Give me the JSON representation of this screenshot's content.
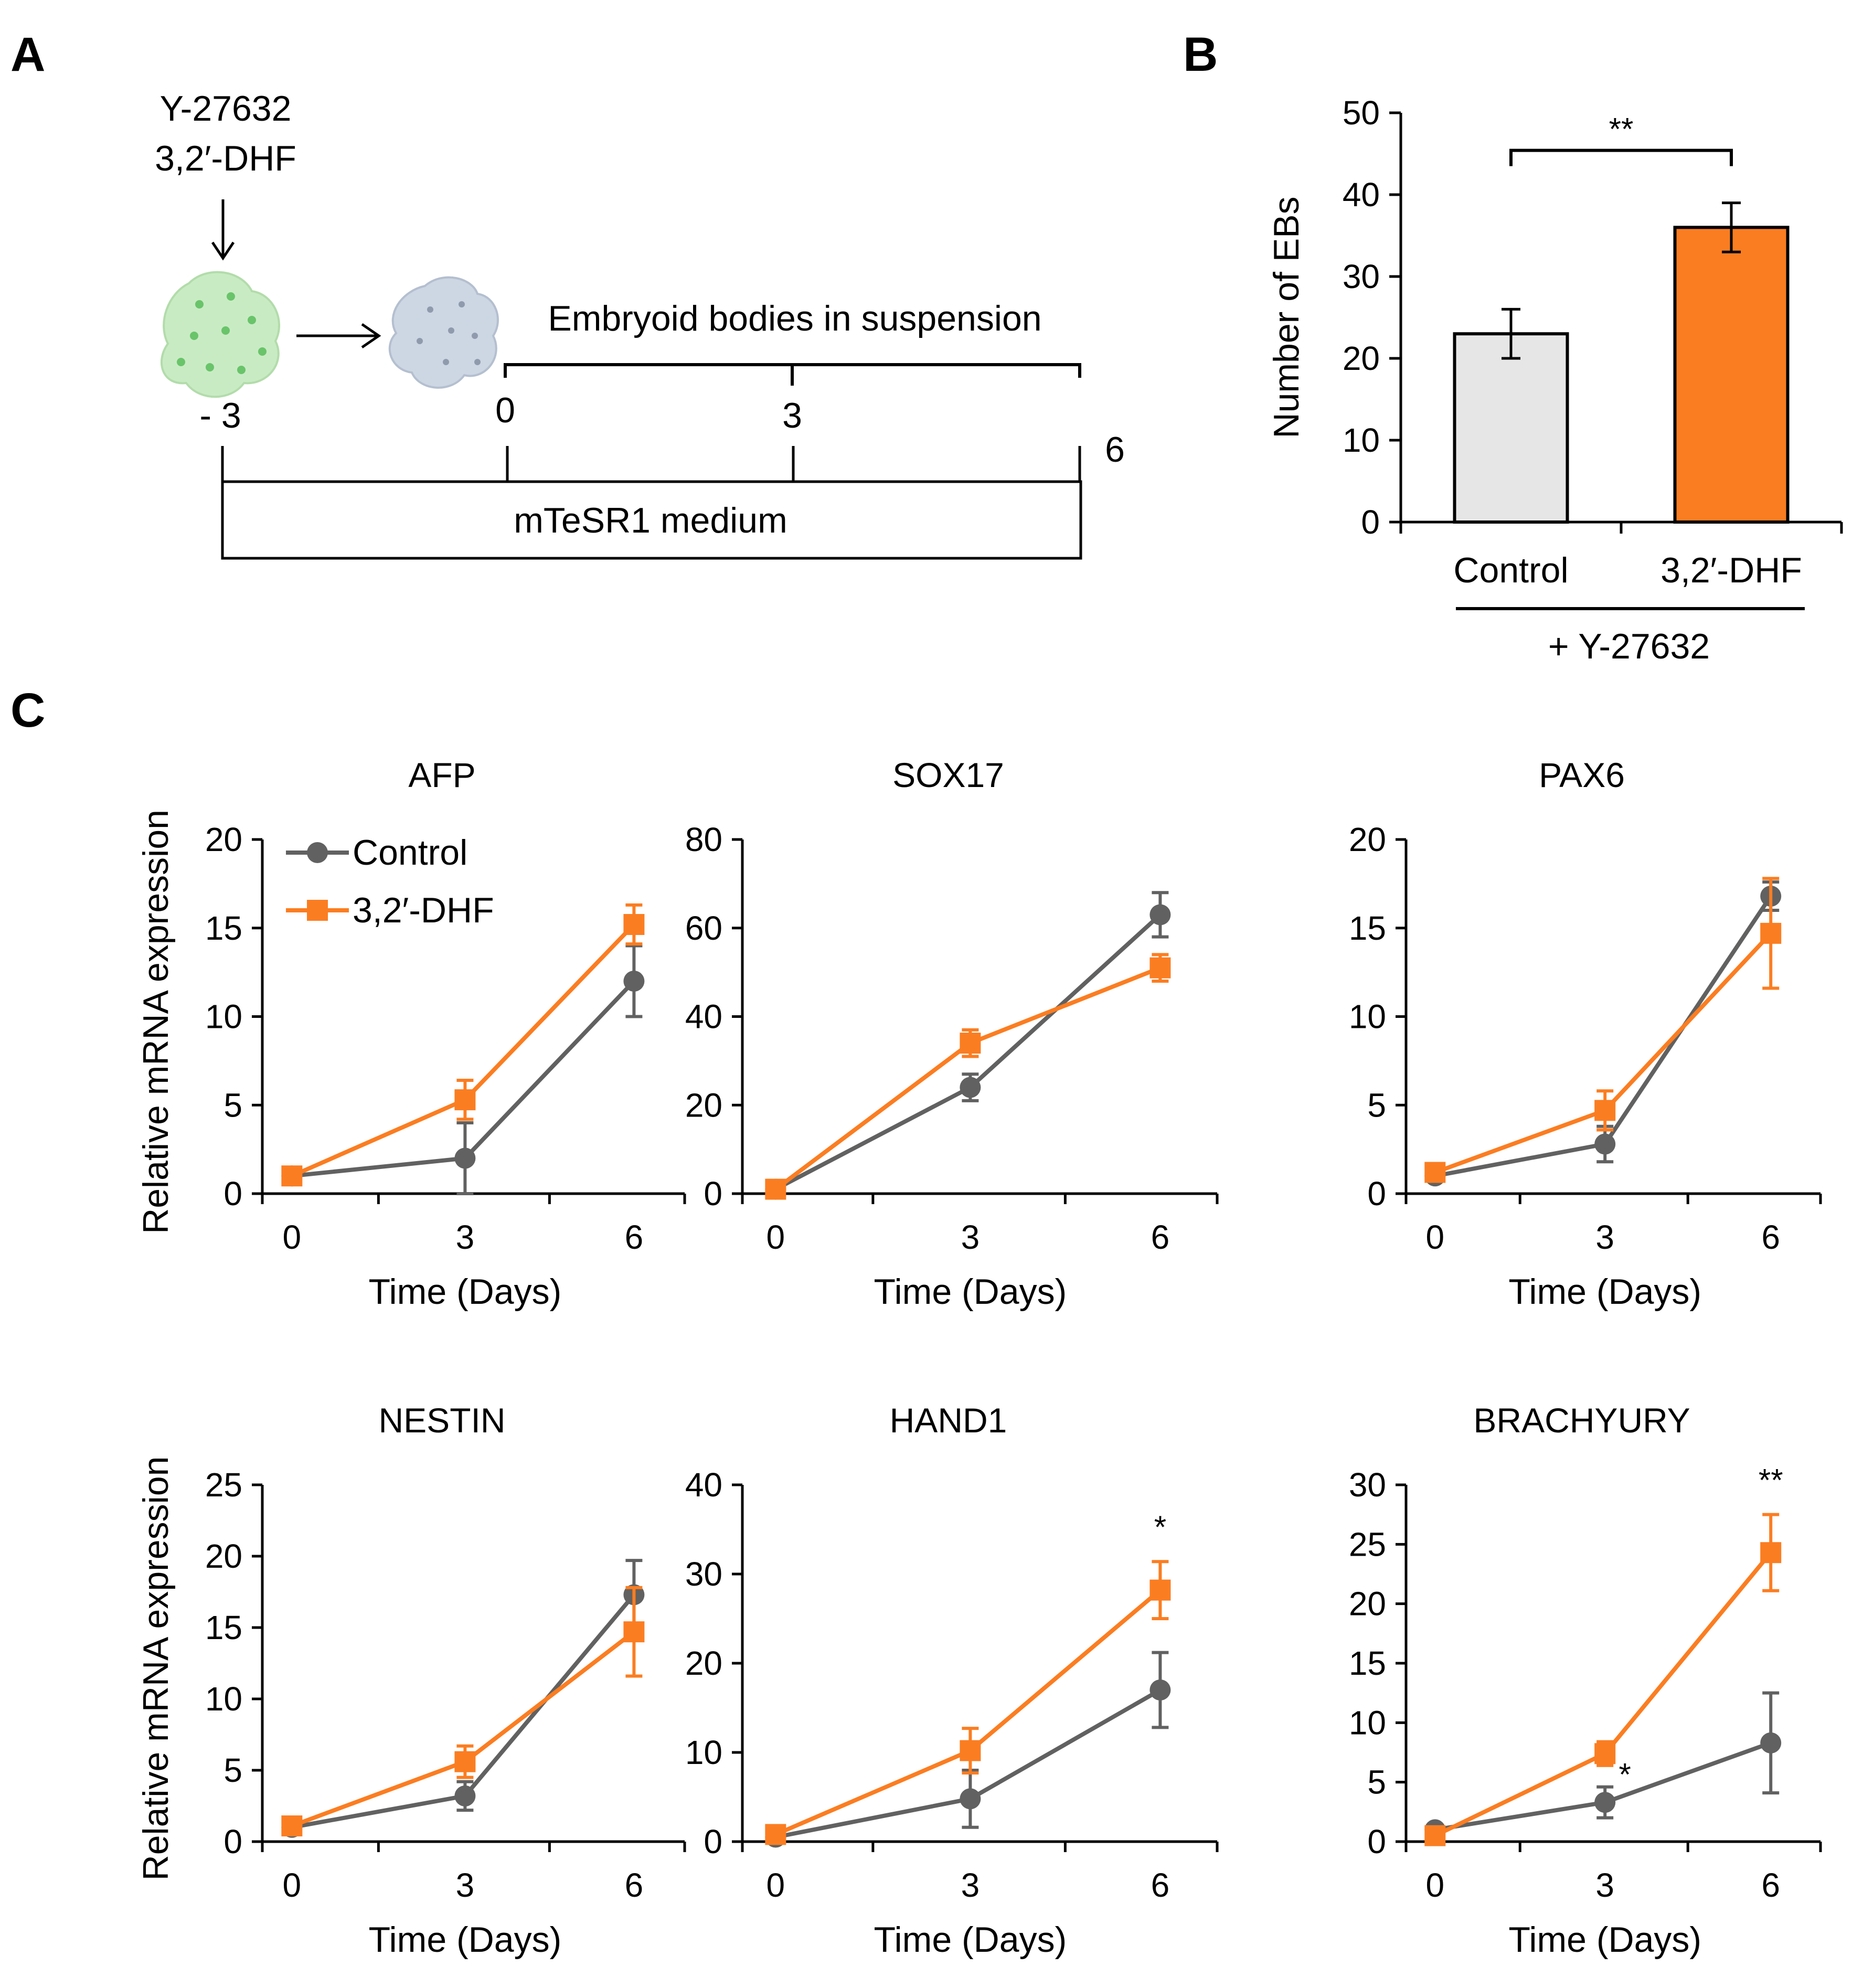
{
  "panels": {
    "A": "A",
    "B": "B",
    "C": "C"
  },
  "panel_a": {
    "treatment_line1": "Y-27632",
    "treatment_line2": "3,2′-DHF",
    "eb_label": "Embryoid bodies in suspension",
    "medium_label": "mTeSR1 medium",
    "day_labels": [
      "- 3",
      "0",
      "3",
      "6"
    ]
  },
  "chart_data": [
    {
      "panel": "B",
      "type": "bar",
      "categories": [
        "Control",
        "3,2′-DHF"
      ],
      "values": [
        23,
        36
      ],
      "errors": [
        3,
        3
      ],
      "ylabel": "Number of EBs",
      "ylim": [
        0,
        50
      ],
      "yticks": [
        0,
        10,
        20,
        30,
        40,
        50
      ],
      "group_label": "+ Y-27632",
      "significance": "**",
      "colors": [
        "#e6e6e6",
        "#fb7d21"
      ]
    },
    {
      "panel": "C",
      "type": "line",
      "title": "AFP",
      "x": [
        0,
        3,
        6
      ],
      "xlabel": "Time (Days)",
      "ylabel": "Relative mRNA expression",
      "ylim": [
        0,
        20
      ],
      "yticks": [
        0,
        5,
        10,
        15,
        20
      ],
      "series": [
        {
          "name": "Control",
          "values": [
            1,
            2,
            12
          ],
          "errors": [
            0.2,
            2,
            2
          ]
        },
        {
          "name": "3,2′-DHF",
          "values": [
            1,
            5.3,
            15.2
          ],
          "errors": [
            0.2,
            1.1,
            1.1
          ]
        }
      ],
      "annotations": []
    },
    {
      "panel": "C",
      "type": "line",
      "title": "SOX17",
      "x": [
        0,
        3,
        6
      ],
      "xlabel": "Time (Days)",
      "ylabel": "",
      "ylim": [
        0,
        80
      ],
      "yticks": [
        0,
        20,
        40,
        60,
        80
      ],
      "series": [
        {
          "name": "Control",
          "values": [
            1,
            24,
            63
          ],
          "errors": [
            0.5,
            3,
            5
          ]
        },
        {
          "name": "3,2′-DHF",
          "values": [
            1,
            34,
            51
          ],
          "errors": [
            0.5,
            3,
            3
          ]
        }
      ],
      "annotations": []
    },
    {
      "panel": "C",
      "type": "line",
      "title": "PAX6",
      "x": [
        0,
        3,
        6
      ],
      "xlabel": "Time (Days)",
      "ylabel": "",
      "ylim": [
        0,
        20
      ],
      "yticks": [
        0,
        5,
        10,
        15,
        20
      ],
      "series": [
        {
          "name": "Control",
          "values": [
            1,
            2.8,
            16.8
          ],
          "errors": [
            0.2,
            1,
            0.8
          ]
        },
        {
          "name": "3,2′-DHF",
          "values": [
            1.2,
            4.7,
            14.7
          ],
          "errors": [
            0.2,
            1.1,
            3.1
          ]
        }
      ],
      "annotations": []
    },
    {
      "panel": "C",
      "type": "line",
      "title": "NESTIN",
      "x": [
        0,
        3,
        6
      ],
      "xlabel": "Time (Days)",
      "ylabel": "Relative mRNA expression",
      "ylim": [
        0,
        25
      ],
      "yticks": [
        0,
        5,
        10,
        15,
        20,
        25
      ],
      "series": [
        {
          "name": "Control",
          "values": [
            1,
            3.2,
            17.3
          ],
          "errors": [
            0.2,
            1,
            2.4
          ]
        },
        {
          "name": "3,2′-DHF",
          "values": [
            1.1,
            5.6,
            14.7
          ],
          "errors": [
            0.2,
            1.1,
            3.1
          ]
        }
      ],
      "annotations": []
    },
    {
      "panel": "C",
      "type": "line",
      "title": "HAND1",
      "x": [
        0,
        3,
        6
      ],
      "xlabel": "Time (Days)",
      "ylabel": "",
      "ylim": [
        0,
        40
      ],
      "yticks": [
        0,
        10,
        20,
        30,
        40
      ],
      "series": [
        {
          "name": "Control",
          "values": [
            0.5,
            4.8,
            17
          ],
          "errors": [
            0.3,
            3.2,
            4.2
          ]
        },
        {
          "name": "3,2′-DHF",
          "values": [
            0.8,
            10.2,
            28.2
          ],
          "errors": [
            0.3,
            2.5,
            3.2
          ]
        }
      ],
      "annotations": [
        {
          "x": 6,
          "text": "*"
        }
      ]
    },
    {
      "panel": "C",
      "type": "line",
      "title": "BRACHYURY",
      "x": [
        0,
        3,
        6
      ],
      "xlabel": "Time (Days)",
      "ylabel": "",
      "ylim": [
        0,
        30
      ],
      "yticks": [
        0,
        5,
        10,
        15,
        20,
        25,
        30
      ],
      "series": [
        {
          "name": "Control",
          "values": [
            1,
            3.3,
            8.3
          ],
          "errors": [
            0.3,
            1.3,
            4.2
          ]
        },
        {
          "name": "3,2′-DHF",
          "values": [
            0.5,
            7.4,
            24.3
          ],
          "errors": [
            0.3,
            1,
            3.2
          ]
        }
      ],
      "annotations": [
        {
          "x": 3,
          "text": "*"
        },
        {
          "x": 6,
          "text": "**"
        }
      ]
    }
  ],
  "colors": {
    "control": "#616161",
    "dhf": "#fb7d21",
    "bar_control": "#e6e6e6",
    "bar_dhf": "#fb7d21",
    "cell_green": "#bfe6bf",
    "cell_gray": "#c8d2e0"
  },
  "legend": {
    "control": "Control",
    "dhf": "3,2′-DHF"
  }
}
